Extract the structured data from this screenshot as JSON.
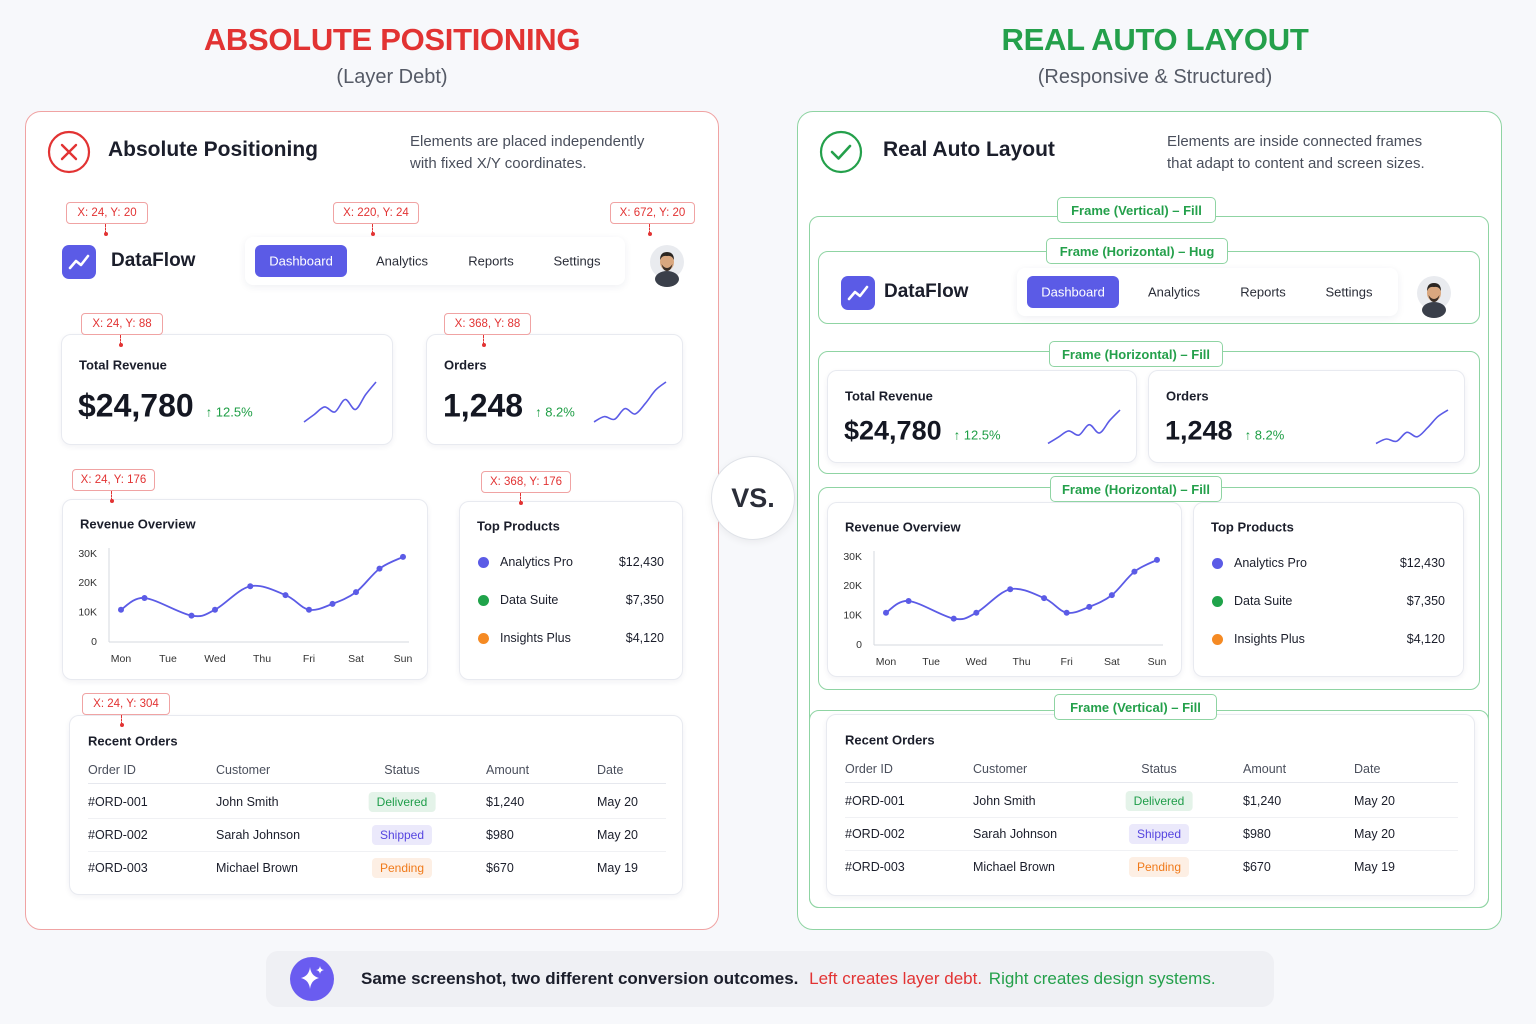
{
  "left": {
    "heading": "ABSOLUTE POSITIONING",
    "subheading": "(Layer Debt)",
    "title": "Absolute Positioning",
    "description": [
      "Elements are placed independently",
      "with fixed X/Y coordinates."
    ],
    "tags": [
      "X: 24, Y: 20",
      "X: 220, Y: 24",
      "X: 672, Y: 20",
      "X: 24, Y: 88",
      "X: 368, Y: 88",
      "X: 24, Y: 176",
      "X: 368, Y: 176",
      "X: 24, Y: 304"
    ]
  },
  "right": {
    "heading": "REAL AUTO LAYOUT",
    "subheading": "(Responsive & Structured)",
    "title": "Real Auto Layout",
    "description": [
      "Elements are inside connected frames",
      "that adapt to content and screen sizes."
    ],
    "tags": [
      "Frame (Vertical) – Fill",
      "Frame (Horizontal) – Hug",
      "Frame (Horizontal) – Fill",
      "Frame (Horizontal) – Fill",
      "Frame (Vertical) – Fill"
    ]
  },
  "vs": "VS.",
  "dashboard": {
    "brand": "DataFlow",
    "nav": [
      "Dashboard",
      "Analytics",
      "Reports",
      "Settings"
    ],
    "kpis": [
      {
        "label": "Total Revenue",
        "value": "$24,780",
        "change": "↑ 12.5%",
        "spark": [
          2,
          5,
          8,
          6,
          11,
          7,
          13,
          18
        ]
      },
      {
        "label": "Orders",
        "value": "1,248",
        "change": "↑ 8.2%",
        "spark": [
          2,
          4,
          3,
          7,
          5,
          9,
          14,
          17
        ]
      }
    ],
    "revenue": {
      "title": "Revenue Overview",
      "type": "line",
      "color": "#5b5be6",
      "x": [
        0,
        0.5,
        1.5,
        2,
        2.75,
        3.5,
        4,
        4.5,
        5,
        5.5,
        6
      ],
      "values": [
        11000,
        15000,
        9000,
        11000,
        19000,
        16000,
        11000,
        13000,
        17000,
        25000,
        29000
      ],
      "xlim": [
        0,
        6
      ],
      "xticks": [
        {
          "value": 0,
          "label": "Mon"
        },
        {
          "value": 1,
          "label": "Tue"
        },
        {
          "value": 2,
          "label": "Wed"
        },
        {
          "value": 3,
          "label": "Thu"
        },
        {
          "value": 4,
          "label": "Fri"
        },
        {
          "value": 5,
          "label": "Sat"
        },
        {
          "value": 6,
          "label": "Sun"
        }
      ],
      "ylim": [
        0,
        30000
      ],
      "yticks": [
        0,
        {
          "value": 10000,
          "label": "10K"
        },
        {
          "value": 20000,
          "label": "20K"
        },
        {
          "value": 30000,
          "label": "30K"
        }
      ],
      "grid": false
    },
    "top_products": {
      "title": "Top Products",
      "items": [
        {
          "name": "Analytics Pro",
          "value": "$12,430",
          "color": "#5b5be6"
        },
        {
          "name": "Data Suite",
          "value": "$7,350",
          "color": "#1fa34a"
        },
        {
          "name": "Insights Plus",
          "value": "$4,120",
          "color": "#f58a23"
        }
      ]
    },
    "orders": {
      "title": "Recent Orders",
      "columns": [
        "Order ID",
        "Customer",
        "Status",
        "Amount",
        "Date"
      ],
      "rows": [
        [
          "#ORD-001",
          "John Smith",
          "Delivered",
          "$1,240",
          "May 20"
        ],
        [
          "#ORD-002",
          "Sarah Johnson",
          "Shipped",
          "$980",
          "May 20"
        ],
        [
          "#ORD-003",
          "Michael Brown",
          "Pending",
          "$670",
          "May 19"
        ]
      ],
      "status_colors": [
        "#1f9d4a",
        "#5646e0",
        "#f07a1a"
      ]
    }
  },
  "footer": {
    "text": "Same screenshot, two different conversion outcomes.",
    "left_note": "Left creates layer debt.",
    "right_note": "Right creates design systems."
  }
}
